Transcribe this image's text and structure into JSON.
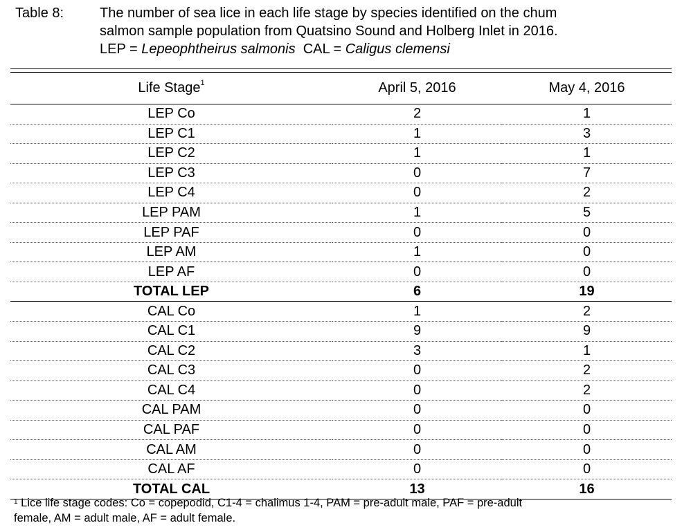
{
  "caption": {
    "label": "Table 8:",
    "line1": "The number of sea lice in each life stage by species identified on the chum",
    "line2": "salmon sample population from Quatsino Sound and Holberg Inlet in 2016.",
    "line3_prefix": "LEP = ",
    "line3_lep_species": "Lepeophtheirus salmonis",
    "line3_mid": "  CAL = ",
    "line3_cal_species": "Caligus clemensi"
  },
  "table": {
    "headers": {
      "life_stage": "Life Stage",
      "life_stage_note": "1",
      "date1": "April 5, 2016",
      "date2": "May 4, 2016"
    },
    "rows": [
      {
        "stage": "LEP Co",
        "apr": "2",
        "may": "1"
      },
      {
        "stage": "LEP C1",
        "apr": "1",
        "may": "3"
      },
      {
        "stage": "LEP C2",
        "apr": "1",
        "may": "1"
      },
      {
        "stage": "LEP C3",
        "apr": "0",
        "may": "7"
      },
      {
        "stage": "LEP C4",
        "apr": "0",
        "may": "2"
      },
      {
        "stage": "LEP PAM",
        "apr": "1",
        "may": "5"
      },
      {
        "stage": "LEP PAF",
        "apr": "0",
        "may": "0"
      },
      {
        "stage": "LEP AM",
        "apr": "1",
        "may": "0"
      },
      {
        "stage": "LEP AF",
        "apr": "0",
        "may": "0"
      },
      {
        "stage": "TOTAL LEP",
        "apr": "6",
        "may": "19",
        "total": true
      },
      {
        "stage": "CAL Co",
        "apr": "1",
        "may": "2"
      },
      {
        "stage": "CAL C1",
        "apr": "9",
        "may": "9"
      },
      {
        "stage": "CAL C2",
        "apr": "3",
        "may": "1"
      },
      {
        "stage": "CAL C3",
        "apr": "0",
        "may": "2"
      },
      {
        "stage": "CAL C4",
        "apr": "0",
        "may": "2"
      },
      {
        "stage": "CAL PAM",
        "apr": "0",
        "may": "0"
      },
      {
        "stage": "CAL PAF",
        "apr": "0",
        "may": "0"
      },
      {
        "stage": "CAL AM",
        "apr": "0",
        "may": "0"
      },
      {
        "stage": "CAL AF",
        "apr": "0",
        "may": "0"
      },
      {
        "stage": "TOTAL CAL",
        "apr": "13",
        "may": "16",
        "total": true
      }
    ]
  },
  "footnote": {
    "marker": "1",
    "line1": " Lice life stage codes: Co = copepodid, C1-4 = chalimus 1-4, PAM = pre-adult male, PAF = pre-adult",
    "line2": "female, AM = adult male, AF = adult female."
  }
}
